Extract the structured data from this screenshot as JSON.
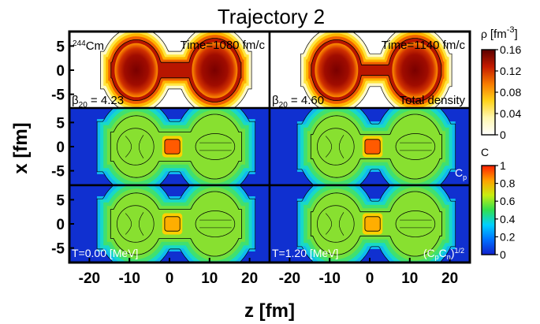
{
  "title": "Trajectory 2",
  "chart_data": {
    "type": "heatmap",
    "title": "Trajectory 2",
    "xlabel": "z [fm]",
    "ylabel": "x [fm]",
    "xlim": [
      -25,
      25
    ],
    "ylim": [
      -8,
      8
    ],
    "x_ticks": [
      "-20",
      "-10",
      "0",
      "10",
      "20"
    ],
    "x_tick_values": [
      -20,
      -10,
      0,
      10,
      20
    ],
    "y_ticks": [
      "5",
      "0",
      "-5"
    ],
    "y_tick_values": [
      5,
      0,
      -5
    ],
    "grid": false,
    "nucleus": "244Cm",
    "columns": [
      {
        "time": "Time=1080 fm/c",
        "beta20": "β20 = 4.23",
        "temperature": "T=0.00 [MeV]",
        "neck_halfwidth": 1.6
      },
      {
        "time": "Time=1140 fm/c",
        "beta20": "β20 = 4.60",
        "temperature": "T=1.20 [MeV]",
        "neck_halfwidth": 1.1
      }
    ],
    "rows": [
      {
        "quantity": "Total density",
        "label": "Total density",
        "colorbar": "density"
      },
      {
        "quantity": "Cp",
        "label": "Cp",
        "colorbar": "localization"
      },
      {
        "quantity": "(CpCn)^1/2",
        "label": "(CpCn)1/2",
        "colorbar": "localization"
      }
    ],
    "colorbars": [
      {
        "name": "density",
        "label": "ρ [fm-3]",
        "range": [
          0,
          0.16
        ],
        "ticks": [
          "0.16",
          "0.12",
          "0.08",
          "0.04",
          "0"
        ],
        "tick_values": [
          0.16,
          0.12,
          0.08,
          0.04,
          0
        ],
        "colors": [
          "#ffffff",
          "#fff7b0",
          "#ffd21a",
          "#f77a00",
          "#c41a00",
          "#5a0000"
        ]
      },
      {
        "name": "localization",
        "label": "C",
        "range": [
          0,
          1
        ],
        "ticks": [
          "1",
          "0.8",
          "0.6",
          "0.4",
          "0.2",
          "0"
        ],
        "tick_values": [
          1,
          0.8,
          0.6,
          0.4,
          0.2,
          0
        ],
        "colors": [
          "#1020cc",
          "#0070ff",
          "#00d0ff",
          "#30e050",
          "#c8ee10",
          "#ffa000",
          "#ff2000"
        ]
      }
    ]
  }
}
